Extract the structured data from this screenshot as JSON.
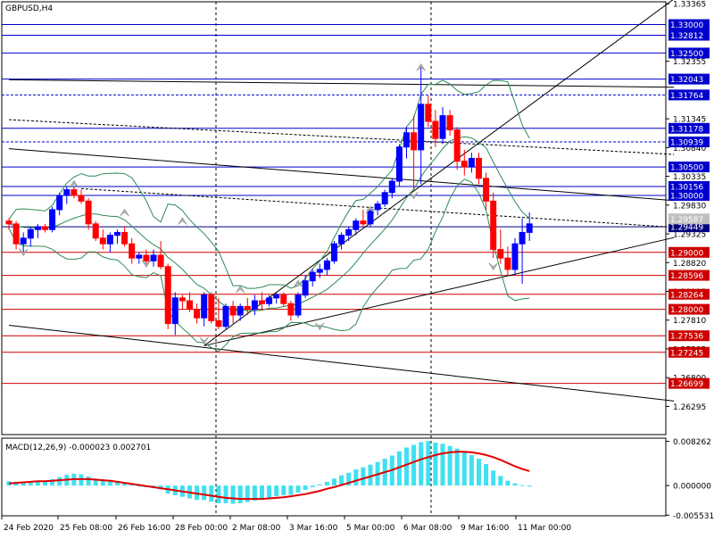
{
  "chart_data": [
    {
      "type": "candlestick",
      "title": "GBPUSD,H4",
      "ylim": [
        1.258,
        1.334
      ],
      "price_ticks": [
        "1.33365",
        "1.32355",
        "1.31345",
        "1.30840",
        "1.30335",
        "1.29830",
        "1.29325",
        "1.28820",
        "1.28315",
        "1.27810",
        "1.27305",
        "1.26800",
        "1.26295"
      ],
      "x_tick_labels": [
        "24 Feb 2020",
        "25 Feb 08:00",
        "26 Feb 16:00",
        "28 Feb 00:00",
        "2 Mar 08:00",
        "3 Mar 16:00",
        "5 Mar 00:00",
        "6 Mar 08:00",
        "9 Mar 16:00",
        "11 Mar 00:00"
      ],
      "current_price": "1.29587",
      "candles": [
        [
          1.2955,
          1.296,
          1.294,
          1.295
        ],
        [
          1.295,
          1.2955,
          1.2905,
          1.2915
        ],
        [
          1.2915,
          1.2935,
          1.29,
          1.2925
        ],
        [
          1.2925,
          1.2945,
          1.291,
          1.294
        ],
        [
          1.294,
          1.295,
          1.2925,
          1.2945
        ],
        [
          1.2945,
          1.295,
          1.2935,
          1.294
        ],
        [
          1.294,
          1.298,
          1.2935,
          1.2975
        ],
        [
          1.2975,
          1.3005,
          1.2965,
          1.3
        ],
        [
          1.3,
          1.3015,
          1.2985,
          1.301
        ],
        [
          1.301,
          1.3015,
          1.2995,
          1.3
        ],
        [
          1.3,
          1.301,
          1.2985,
          1.299
        ],
        [
          1.299,
          1.2995,
          1.294,
          1.295
        ],
        [
          1.295,
          1.2955,
          1.292,
          1.2925
        ],
        [
          1.2925,
          1.294,
          1.2905,
          1.2915
        ],
        [
          1.2915,
          1.2935,
          1.29,
          1.293
        ],
        [
          1.293,
          1.294,
          1.2915,
          1.2935
        ],
        [
          1.2935,
          1.2945,
          1.291,
          1.2915
        ],
        [
          1.2915,
          1.2925,
          1.288,
          1.289
        ],
        [
          1.289,
          1.29,
          1.288,
          1.2895
        ],
        [
          1.2895,
          1.2905,
          1.288,
          1.2885
        ],
        [
          1.2885,
          1.2905,
          1.2875,
          1.2895
        ],
        [
          1.2895,
          1.292,
          1.287,
          1.2875
        ],
        [
          1.2875,
          1.288,
          1.2765,
          1.2775
        ],
        [
          1.2775,
          1.283,
          1.2755,
          1.282
        ],
        [
          1.282,
          1.2825,
          1.28,
          1.2815
        ],
        [
          1.2815,
          1.283,
          1.2795,
          1.28
        ],
        [
          1.28,
          1.281,
          1.2775,
          1.2785
        ],
        [
          1.2785,
          1.283,
          1.277,
          1.2825
        ],
        [
          1.2825,
          1.283,
          1.2775,
          1.278
        ],
        [
          1.278,
          1.282,
          1.2765,
          1.277
        ],
        [
          1.277,
          1.281,
          1.2765,
          1.2805
        ],
        [
          1.2805,
          1.2815,
          1.2775,
          1.279
        ],
        [
          1.279,
          1.281,
          1.278,
          1.2805
        ],
        [
          1.2805,
          1.282,
          1.279,
          1.28
        ],
        [
          1.28,
          1.2825,
          1.279,
          1.2815
        ],
        [
          1.2815,
          1.283,
          1.28,
          1.281
        ],
        [
          1.281,
          1.2825,
          1.2805,
          1.282
        ],
        [
          1.282,
          1.283,
          1.281,
          1.2825
        ],
        [
          1.2825,
          1.283,
          1.2805,
          1.281
        ],
        [
          1.281,
          1.2815,
          1.278,
          1.279
        ],
        [
          1.279,
          1.283,
          1.2785,
          1.2825
        ],
        [
          1.2825,
          1.286,
          1.282,
          1.285
        ],
        [
          1.285,
          1.287,
          1.284,
          1.2865
        ],
        [
          1.2865,
          1.288,
          1.2855,
          1.287
        ],
        [
          1.287,
          1.289,
          1.286,
          1.2885
        ],
        [
          1.2885,
          1.292,
          1.288,
          1.2915
        ],
        [
          1.2915,
          1.2935,
          1.2905,
          1.293
        ],
        [
          1.293,
          1.2945,
          1.292,
          1.294
        ],
        [
          1.294,
          1.296,
          1.293,
          1.2955
        ],
        [
          1.2955,
          1.2975,
          1.2945,
          1.295
        ],
        [
          1.295,
          1.298,
          1.2945,
          1.2975
        ],
        [
          1.2975,
          1.299,
          1.2965,
          1.2985
        ],
        [
          1.2985,
          1.301,
          1.298,
          1.3005
        ],
        [
          1.3005,
          1.303,
          1.2995,
          1.3025
        ],
        [
          1.3025,
          1.309,
          1.3015,
          1.3085
        ],
        [
          1.3085,
          1.312,
          1.3065,
          1.311
        ],
        [
          1.311,
          1.314,
          1.301,
          1.308
        ],
        [
          1.308,
          1.3225,
          1.302,
          1.316
        ],
        [
          1.316,
          1.3175,
          1.312,
          1.313
        ],
        [
          1.313,
          1.315,
          1.3085,
          1.31
        ],
        [
          1.31,
          1.3155,
          1.309,
          1.314
        ],
        [
          1.314,
          1.315,
          1.3105,
          1.3115
        ],
        [
          1.3115,
          1.312,
          1.3045,
          1.306
        ],
        [
          1.306,
          1.308,
          1.3035,
          1.305
        ],
        [
          1.305,
          1.3075,
          1.304,
          1.3065
        ],
        [
          1.3065,
          1.3075,
          1.302,
          1.303
        ],
        [
          1.303,
          1.304,
          1.2975,
          1.299
        ],
        [
          1.299,
          1.3005,
          1.289,
          1.2905
        ],
        [
          1.2905,
          1.294,
          1.288,
          1.289
        ],
        [
          1.289,
          1.291,
          1.286,
          1.287
        ],
        [
          1.287,
          1.2925,
          1.286,
          1.2915
        ],
        [
          1.2915,
          1.296,
          1.2845,
          1.2935
        ],
        [
          1.2935,
          1.297,
          1.292,
          1.295
        ]
      ],
      "horizontal_levels": [
        {
          "price": "1.33000",
          "color": "#0000cc",
          "label_bg": "#0000cc"
        },
        {
          "price": "1.32812",
          "color": "#0000cc",
          "label_bg": "#0000cc"
        },
        {
          "price": "1.32500",
          "color": "#0000cc",
          "label_bg": "#0000cc"
        },
        {
          "price": "1.32043",
          "color": "#0000cc",
          "label_bg": "#0000cc"
        },
        {
          "price": "1.31764",
          "color": "#0000cc",
          "label_bg": "#0000cc",
          "dashed": true
        },
        {
          "price": "1.31178",
          "color": "#0000cc",
          "label_bg": "#0000cc"
        },
        {
          "price": "1.30939",
          "color": "#0000cc",
          "label_bg": "#0000cc",
          "dashed": true
        },
        {
          "price": "1.30500",
          "color": "#0000cc",
          "label_bg": "#0000cc"
        },
        {
          "price": "1.30156",
          "color": "#0000cc",
          "label_bg": "#0000cc"
        },
        {
          "price": "1.30000",
          "color": "#0000cc",
          "label_bg": "#0000cc"
        },
        {
          "price": "1.29449",
          "color": "#000080",
          "label_bg": "#000080"
        },
        {
          "price": "1.29000",
          "color": "#cc0000",
          "label_bg": "#cc0000"
        },
        {
          "price": "1.28596",
          "color": "#cc0000",
          "label_bg": "#cc0000"
        },
        {
          "price": "1.28264",
          "color": "#cc0000",
          "label_bg": "#cc0000"
        },
        {
          "price": "1.28000",
          "color": "#cc0000",
          "label_bg": "#cc0000"
        },
        {
          "price": "1.27536",
          "color": "#cc0000",
          "label_bg": "#cc0000"
        },
        {
          "price": "1.27245",
          "color": "#cc0000",
          "label_bg": "#cc0000"
        },
        {
          "price": "1.26699",
          "color": "#cc0000",
          "label_bg": "#cc0000"
        }
      ]
    },
    {
      "type": "histogram",
      "title": "MACD(12,26,9) -0.000023 0.002701",
      "ylim": [
        -0.00565,
        0.00885
      ],
      "y_ticks": [
        "0.008262",
        "0.000000",
        "-0.005531"
      ],
      "macd": [
        0.0008,
        0.0007,
        0.0006,
        0.0007,
        0.0008,
        0.0008,
        0.0012,
        0.0016,
        0.002,
        0.0022,
        0.0021,
        0.0017,
        0.0013,
        0.0009,
        0.0008,
        0.0007,
        0.0006,
        0.0002,
        -0.0001,
        -0.0003,
        -0.0005,
        -0.0007,
        -0.0015,
        -0.0018,
        -0.0021,
        -0.0024,
        -0.0027,
        -0.0027,
        -0.003,
        -0.0033,
        -0.0033,
        -0.0034,
        -0.0033,
        -0.0031,
        -0.0028,
        -0.0026,
        -0.0023,
        -0.002,
        -0.0018,
        -0.0017,
        -0.0013,
        -0.0008,
        -0.0003,
        0.0002,
        0.0007,
        0.0013,
        0.0019,
        0.0024,
        0.003,
        0.0034,
        0.0039,
        0.0044,
        0.005,
        0.0056,
        0.0064,
        0.0071,
        0.0076,
        0.0081,
        0.0083,
        0.008,
        0.0078,
        0.0074,
        0.0069,
        0.0063,
        0.0057,
        0.005,
        0.004,
        0.0028,
        0.0018,
        0.0009,
        0.0004,
        0.0001,
        -0.0
      ],
      "signal": [
        0.0004,
        0.0005,
        0.0006,
        0.0007,
        0.0008,
        0.0008,
        0.0009,
        0.001,
        0.0011,
        0.0012,
        0.0012,
        0.0012,
        0.0011,
        0.001,
        0.0009,
        0.0007,
        0.0005,
        0.0003,
        0.0001,
        -0.0001,
        -0.0003,
        -0.0005,
        -0.0007,
        -0.0009,
        -0.0011,
        -0.0013,
        -0.0015,
        -0.0017,
        -0.0019,
        -0.0021,
        -0.0023,
        -0.0024,
        -0.0025,
        -0.0025,
        -0.0025,
        -0.0025,
        -0.0024,
        -0.0023,
        -0.0022,
        -0.002,
        -0.0018,
        -0.0016,
        -0.0013,
        -0.001,
        -0.0006,
        -0.0003,
        0.0001,
        0.0005,
        0.0009,
        0.0013,
        0.0017,
        0.0021,
        0.0025,
        0.0029,
        0.0034,
        0.0039,
        0.0044,
        0.0049,
        0.0053,
        0.0057,
        0.006,
        0.0062,
        0.0063,
        0.0063,
        0.0062,
        0.006,
        0.0057,
        0.0053,
        0.0048,
        0.0042,
        0.0036,
        0.0031,
        0.0027
      ]
    }
  ]
}
